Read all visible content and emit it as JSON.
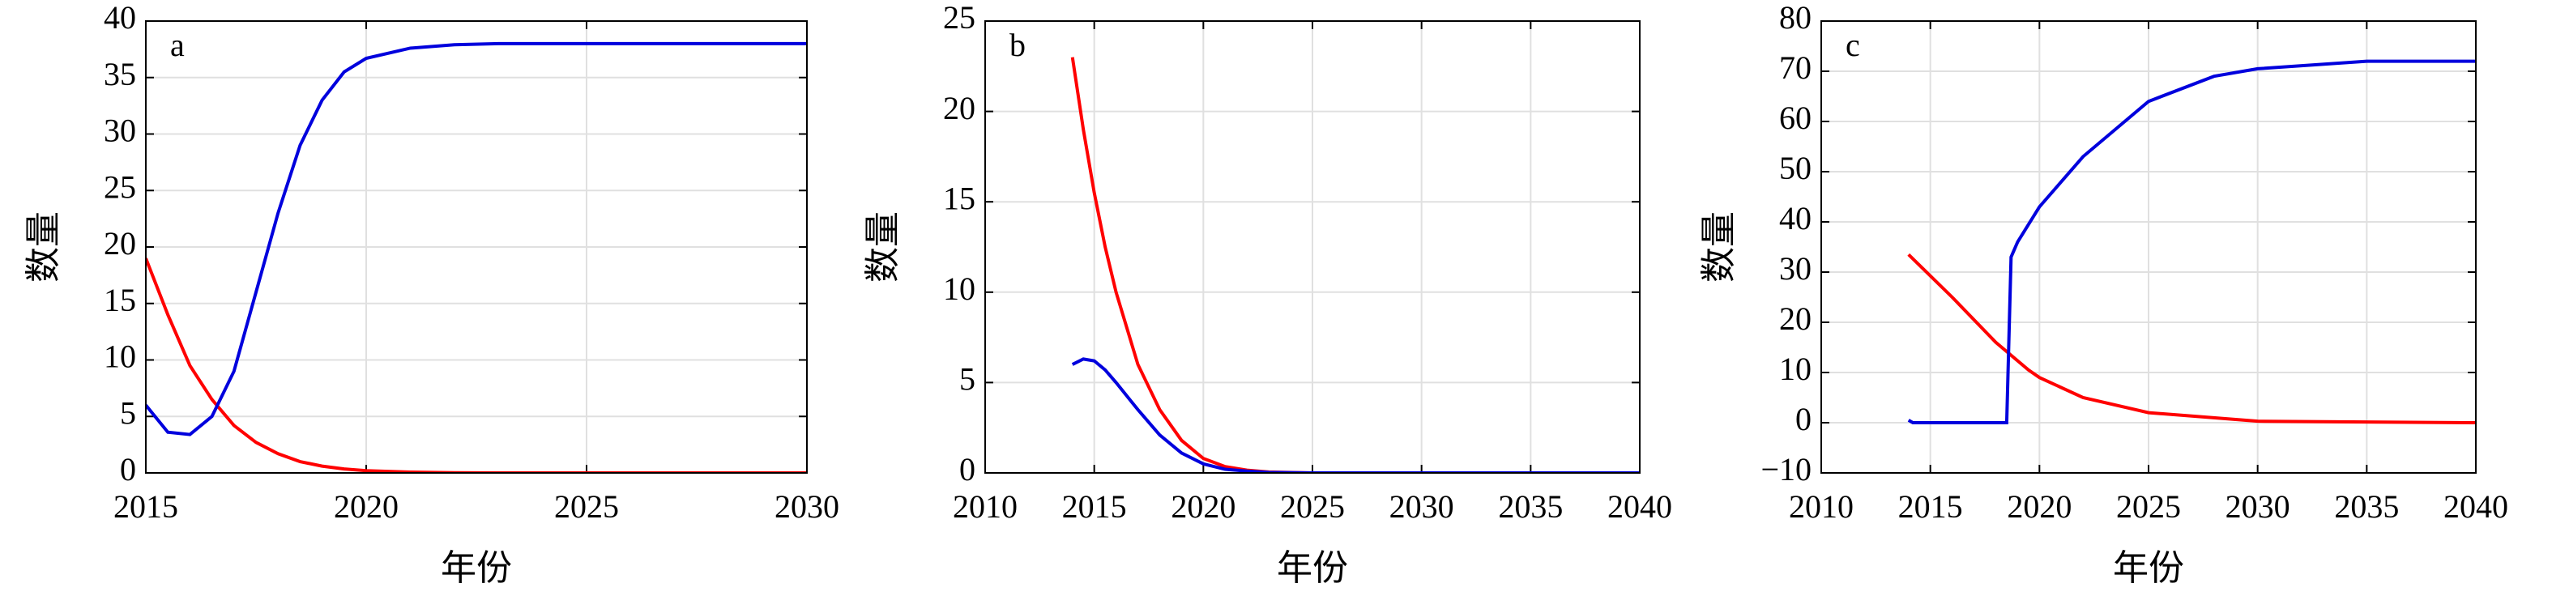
{
  "chart_data": [
    {
      "type": "line",
      "label": "a",
      "xlabel": "年份",
      "ylabel": "数量",
      "xlim": [
        2015,
        2030
      ],
      "xticks": [
        2015,
        2020,
        2025,
        2030
      ],
      "ylim": [
        0,
        40
      ],
      "yticks": [
        0,
        5,
        10,
        15,
        20,
        25,
        30,
        35,
        40
      ],
      "grid": true,
      "series": [
        {
          "color": "#ff0000",
          "x": [
            2015,
            2015.5,
            2016,
            2016.5,
            2017,
            2017.5,
            2018,
            2018.5,
            2019,
            2019.5,
            2020,
            2021,
            2022,
            2023,
            2025,
            2030
          ],
          "values": [
            19,
            14,
            9.5,
            6.5,
            4.2,
            2.7,
            1.7,
            1.0,
            0.6,
            0.35,
            0.2,
            0.07,
            0.02,
            0,
            0,
            0
          ]
        },
        {
          "color": "#0000dd",
          "x": [
            2015,
            2015.5,
            2016,
            2016.5,
            2017,
            2017.5,
            2018,
            2018.5,
            2019,
            2019.5,
            2020,
            2021,
            2022,
            2023,
            2025,
            2030
          ],
          "values": [
            6,
            3.6,
            3.4,
            5,
            9,
            16,
            23,
            29,
            33,
            35.5,
            36.7,
            37.6,
            37.9,
            38,
            38,
            38
          ]
        }
      ]
    },
    {
      "type": "line",
      "label": "b",
      "xlabel": "年份",
      "ylabel": "数量",
      "xlim": [
        2010,
        2040
      ],
      "xticks": [
        2010,
        2015,
        2020,
        2025,
        2030,
        2035,
        2040
      ],
      "ylim": [
        0,
        25
      ],
      "yticks": [
        0,
        5,
        10,
        15,
        20,
        25
      ],
      "grid": true,
      "series": [
        {
          "color": "#ff0000",
          "x": [
            2014,
            2014.5,
            2015,
            2015.5,
            2016,
            2017,
            2018,
            2019,
            2020,
            2021,
            2022,
            2023,
            2025,
            2030,
            2040
          ],
          "values": [
            23,
            19,
            15.5,
            12.5,
            10,
            6,
            3.5,
            1.8,
            0.8,
            0.35,
            0.15,
            0.05,
            0,
            0,
            0
          ]
        },
        {
          "color": "#0000dd",
          "x": [
            2014,
            2014.5,
            2015,
            2015.5,
            2016,
            2017,
            2018,
            2019,
            2020,
            2021,
            2022,
            2023,
            2025,
            2030,
            2040
          ],
          "values": [
            6,
            6.3,
            6.2,
            5.7,
            5,
            3.5,
            2.1,
            1.1,
            0.5,
            0.2,
            0.1,
            0.03,
            0,
            0,
            0
          ]
        }
      ]
    },
    {
      "type": "line",
      "label": "c",
      "xlabel": "年份",
      "ylabel": "数量",
      "xlim": [
        2010,
        2040
      ],
      "xticks": [
        2010,
        2015,
        2020,
        2025,
        2030,
        2035,
        2040
      ],
      "ylim": [
        -10,
        80
      ],
      "yticks": [
        {
          "value": -10,
          "label": "−10"
        },
        0,
        10,
        20,
        30,
        40,
        50,
        60,
        70,
        80
      ],
      "grid": true,
      "series": [
        {
          "color": "#ff0000",
          "x": [
            2014,
            2016,
            2018,
            2019.5,
            2020,
            2022,
            2025,
            2030,
            2040
          ],
          "values": [
            33.5,
            25,
            16,
            10.5,
            9,
            5,
            2,
            0.3,
            0
          ]
        },
        {
          "color": "#0000dd",
          "x": [
            2014,
            2014.2,
            2018.5,
            2018.7,
            2019,
            2020,
            2022,
            2025,
            2028,
            2030,
            2035,
            2040
          ],
          "values": [
            0.5,
            0,
            0,
            33,
            36,
            43,
            53,
            64,
            69,
            70.5,
            72,
            72
          ]
        }
      ]
    }
  ]
}
